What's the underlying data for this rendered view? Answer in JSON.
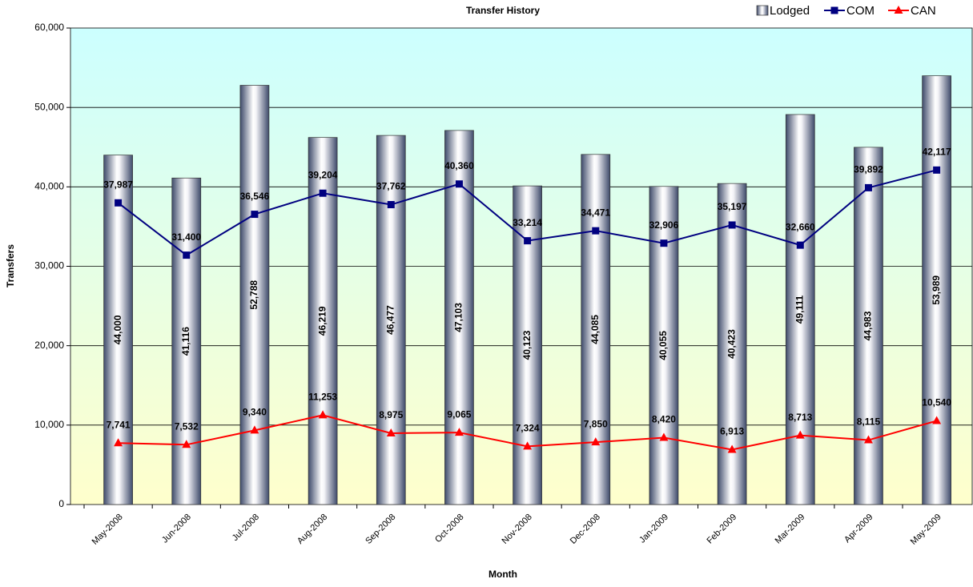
{
  "chart_data": {
    "type": "bar",
    "title": "Transfer History",
    "x_label": "Month",
    "y_label": "Transfers",
    "categories": [
      "May-2008",
      "Jun-2008",
      "Jul-2008",
      "Aug-2008",
      "Sep-2008",
      "Oct-2008",
      "Nov-2008",
      "Dec-2008",
      "Jan-2009",
      "Feb-2009",
      "Mar-2009",
      "Apr-2009",
      "May-2009"
    ],
    "series": [
      {
        "name": "Lodged",
        "type": "bar",
        "color": "#5a6a8c",
        "values": [
          44000,
          41116,
          52788,
          46219,
          46477,
          47103,
          40123,
          44085,
          40055,
          40423,
          49111,
          44983,
          53989
        ],
        "value_labels": [
          "44,000",
          "41,116",
          "52,788",
          "46,219",
          "46,477",
          "47,103",
          "40,123",
          "44,085",
          "40,055",
          "40,423",
          "49,111",
          "44,983",
          "53,989"
        ]
      },
      {
        "name": "COM",
        "type": "line",
        "marker": "square",
        "color": "#000080",
        "values": [
          37987,
          31400,
          36546,
          39204,
          37762,
          40360,
          33214,
          34471,
          32906,
          35197,
          32660,
          39892,
          42117
        ],
        "value_labels": [
          "37,987",
          "31,400",
          "36,546",
          "39,204",
          "37,762",
          "40,360",
          "33,214",
          "34,471",
          "32,906",
          "35,197",
          "32,660",
          "39,892",
          "42,117"
        ]
      },
      {
        "name": "CAN",
        "type": "line",
        "marker": "triangle",
        "color": "#ff0000",
        "values": [
          7741,
          7532,
          9340,
          11253,
          8975,
          9065,
          7324,
          7850,
          8420,
          6913,
          8713,
          8115,
          10540
        ],
        "value_labels": [
          "7,741",
          "7,532",
          "9,340",
          "11,253",
          "8,975",
          "9,065",
          "7,324",
          "7,850",
          "8,420",
          "6,913",
          "8,713",
          "8,115",
          "10,540"
        ]
      }
    ],
    "ylim": [
      0,
      60000
    ],
    "yticks": [
      0,
      {
        "value": 10000,
        "label": "10,000"
      },
      {
        "value": 20000,
        "label": "20,000"
      },
      {
        "value": 30000,
        "label": "30,000"
      },
      {
        "value": 40000,
        "label": "40,000"
      },
      {
        "value": 50000,
        "label": "50,000"
      },
      {
        "value": 60000,
        "label": "60,000"
      }
    ],
    "grid": true,
    "legend": "top-right"
  }
}
